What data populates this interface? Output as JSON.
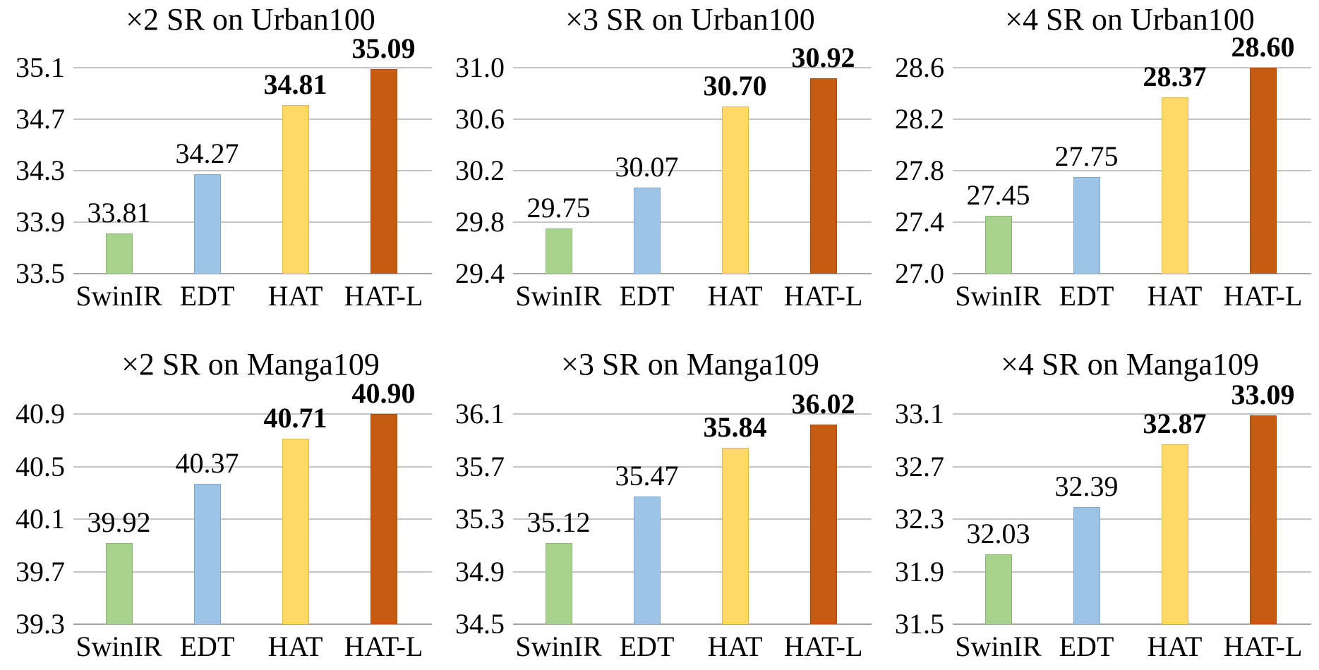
{
  "figure": {
    "background": "#ffffff",
    "text_color": "#000000",
    "gridline_color": "#c3c3c3",
    "axis_line_color": "#a6a6a6",
    "series": [
      {
        "name": "SwinIR",
        "color": "#a9d18e",
        "border": "#8ab870"
      },
      {
        "name": "EDT",
        "color": "#9dc3e6",
        "border": "#7fa8cc"
      },
      {
        "name": "HAT",
        "color": "#ffd966",
        "border": "#ddb94e"
      },
      {
        "name": "HAT-L",
        "color": "#c55a11",
        "border": "#a84b0c"
      }
    ]
  },
  "chart_data": [
    {
      "type": "bar",
      "title": "×2 SR on Urban100",
      "categories": [
        "SwinIR",
        "EDT",
        "HAT",
        "HAT-L"
      ],
      "values": [
        33.81,
        34.27,
        34.81,
        35.09
      ],
      "value_labels": [
        "33.81",
        "34.27",
        "34.81",
        "35.09"
      ],
      "bold_value_labels": [
        false,
        false,
        true,
        true
      ],
      "ylim": [
        33.5,
        35.1
      ],
      "yticks": [
        "35.1",
        "34.7",
        "34.3",
        "33.9",
        "33.5"
      ],
      "grid": true,
      "legend": "none",
      "xlabel": "",
      "ylabel": ""
    },
    {
      "type": "bar",
      "title": "×3 SR on Urban100",
      "categories": [
        "SwinIR",
        "EDT",
        "HAT",
        "HAT-L"
      ],
      "values": [
        29.75,
        30.07,
        30.7,
        30.92
      ],
      "value_labels": [
        "29.75",
        "30.07",
        "30.70",
        "30.92"
      ],
      "bold_value_labels": [
        false,
        false,
        true,
        true
      ],
      "ylim": [
        29.4,
        31.0
      ],
      "yticks": [
        "31.0",
        "30.6",
        "30.2",
        "29.8",
        "29.4"
      ],
      "grid": true,
      "legend": "none",
      "xlabel": "",
      "ylabel": ""
    },
    {
      "type": "bar",
      "title": "×4 SR on Urban100",
      "categories": [
        "SwinIR",
        "EDT",
        "HAT",
        "HAT-L"
      ],
      "values": [
        27.45,
        27.75,
        28.37,
        28.6
      ],
      "value_labels": [
        "27.45",
        "27.75",
        "28.37",
        "28.60"
      ],
      "bold_value_labels": [
        false,
        false,
        true,
        true
      ],
      "ylim": [
        27.0,
        28.6
      ],
      "yticks": [
        "28.6",
        "28.2",
        "27.8",
        "27.4",
        "27.0"
      ],
      "grid": true,
      "legend": "none",
      "xlabel": "",
      "ylabel": ""
    },
    {
      "type": "bar",
      "title": "×2 SR on Manga109",
      "categories": [
        "SwinIR",
        "EDT",
        "HAT",
        "HAT-L"
      ],
      "values": [
        39.92,
        40.37,
        40.71,
        40.9
      ],
      "value_labels": [
        "39.92",
        "40.37",
        "40.71",
        "40.90"
      ],
      "bold_value_labels": [
        false,
        false,
        true,
        true
      ],
      "ylim": [
        39.3,
        40.9
      ],
      "yticks": [
        "40.9",
        "40.5",
        "40.1",
        "39.7",
        "39.3"
      ],
      "grid": true,
      "legend": "none",
      "xlabel": "",
      "ylabel": ""
    },
    {
      "type": "bar",
      "title": "×3 SR on Manga109",
      "categories": [
        "SwinIR",
        "EDT",
        "HAT",
        "HAT-L"
      ],
      "values": [
        35.12,
        35.47,
        35.84,
        36.02
      ],
      "value_labels": [
        "35.12",
        "35.47",
        "35.84",
        "36.02"
      ],
      "bold_value_labels": [
        false,
        false,
        true,
        true
      ],
      "ylim": [
        34.5,
        36.1
      ],
      "yticks": [
        "36.1",
        "35.7",
        "35.3",
        "34.9",
        "34.5"
      ],
      "grid": true,
      "legend": "none",
      "xlabel": "",
      "ylabel": ""
    },
    {
      "type": "bar",
      "title": "×4 SR on Manga109",
      "categories": [
        "SwinIR",
        "EDT",
        "HAT",
        "HAT-L"
      ],
      "values": [
        32.03,
        32.39,
        32.87,
        33.09
      ],
      "value_labels": [
        "32.03",
        "32.39",
        "32.87",
        "33.09"
      ],
      "bold_value_labels": [
        false,
        false,
        true,
        true
      ],
      "ylim": [
        31.5,
        33.1
      ],
      "yticks": [
        "33.1",
        "32.7",
        "32.3",
        "31.9",
        "31.5"
      ],
      "grid": true,
      "legend": "none",
      "xlabel": "",
      "ylabel": ""
    }
  ]
}
